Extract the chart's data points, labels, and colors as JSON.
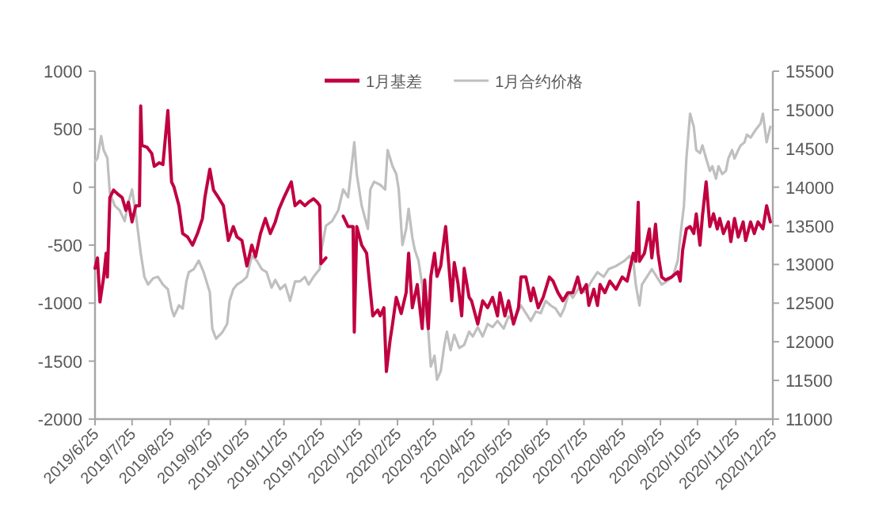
{
  "chart_data": {
    "type": "line",
    "legend": "top",
    "grid": false,
    "marker": "none",
    "line_style": "solid",
    "xlim": [
      "2019-06-25",
      "2020-12-25"
    ],
    "xticks": [
      {
        "value": "2019-06-25",
        "label": "2019/6/25"
      },
      {
        "value": "2019-07-25",
        "label": "2019/7/25"
      },
      {
        "value": "2019-08-25",
        "label": "2019/8/25"
      },
      {
        "value": "2019-09-25",
        "label": "2019/9/25"
      },
      {
        "value": "2019-10-25",
        "label": "2019/10/25"
      },
      {
        "value": "2019-11-25",
        "label": "2019/11/25"
      },
      {
        "value": "2019-12-25",
        "label": "2019/12/25"
      },
      {
        "value": "2020-01-25",
        "label": "2020/1/25"
      },
      {
        "value": "2020-02-25",
        "label": "2020/2/25"
      },
      {
        "value": "2020-03-25",
        "label": "2020/3/25"
      },
      {
        "value": "2020-04-25",
        "label": "2020/4/25"
      },
      {
        "value": "2020-05-25",
        "label": "2020/5/25"
      },
      {
        "value": "2020-06-25",
        "label": "2020/6/25"
      },
      {
        "value": "2020-07-25",
        "label": "2020/7/25"
      },
      {
        "value": "2020-08-25",
        "label": "2020/8/25"
      },
      {
        "value": "2020-09-25",
        "label": "2020/9/25"
      },
      {
        "value": "2020-10-25",
        "label": "2020/10/25"
      },
      {
        "value": "2020-11-25",
        "label": "2020/11/25"
      },
      {
        "value": "2020-12-25",
        "label": "2020/12/25"
      }
    ],
    "ylim": [
      -2000,
      1000
    ],
    "yticks": [
      -2000,
      -1500,
      -1000,
      -500,
      0,
      500,
      1000
    ],
    "y2lim": [
      11000,
      15500
    ],
    "y2ticks": [
      11000,
      11500,
      12000,
      12500,
      13000,
      13500,
      14000,
      14500,
      15000,
      15500
    ],
    "series": [
      {
        "name": "1月基差",
        "color": "#c00040",
        "axis": "y",
        "x": [
          "2019-06-25",
          "2019-06-27",
          "2019-06-29",
          "2019-07-02",
          "2019-07-04",
          "2019-07-05",
          "2019-07-07",
          "2019-07-10",
          "2019-07-14",
          "2019-07-17",
          "2019-07-20",
          "2019-07-22",
          "2019-07-25",
          "2019-07-28",
          "2019-07-31",
          "2019-08-01",
          "2019-08-02",
          "2019-08-06",
          "2019-08-10",
          "2019-08-12",
          "2019-08-16",
          "2019-08-19",
          "2019-08-23",
          "2019-08-26",
          "2019-08-28",
          "2019-09-01",
          "2019-09-04",
          "2019-09-08",
          "2019-09-12",
          "2019-09-16",
          "2019-09-20",
          "2019-09-22",
          "2019-09-26",
          "2019-09-29",
          "2019-10-03",
          "2019-10-07",
          "2019-10-11",
          "2019-10-15",
          "2019-10-18",
          "2019-10-22",
          "2019-10-26",
          "2019-10-30",
          "2019-11-02",
          "2019-11-06",
          "2019-11-10",
          "2019-11-14",
          "2019-11-18",
          "2019-11-21",
          "2019-11-25",
          "2019-11-29",
          "2019-12-01",
          "2019-12-04",
          "2019-12-08",
          "2019-12-12",
          "2019-12-15",
          "2019-12-19",
          "2019-12-22",
          "2019-12-24",
          "2019-12-25",
          "2019-12-29",
          "2020-01-05",
          "2020-01-12",
          "2020-01-16",
          "2020-01-20",
          "2020-01-21",
          "2020-01-23",
          "2020-01-27",
          "2020-01-31",
          "2020-02-05",
          "2020-02-09",
          "2020-02-11",
          "2020-02-14",
          "2020-02-16",
          "2020-02-19",
          "2020-02-21",
          "2020-02-24",
          "2020-02-28",
          "2020-03-03",
          "2020-03-05",
          "2020-03-08",
          "2020-03-12",
          "2020-03-16",
          "2020-03-18",
          "2020-03-21",
          "2020-03-23",
          "2020-03-26",
          "2020-03-28",
          "2020-03-31",
          "2020-04-04",
          "2020-04-06",
          "2020-04-09",
          "2020-04-11",
          "2020-04-14",
          "2020-04-17",
          "2020-04-19",
          "2020-04-23",
          "2020-04-25",
          "2020-04-30",
          "2020-05-04",
          "2020-05-08",
          "2020-05-12",
          "2020-05-16",
          "2020-05-18",
          "2020-05-22",
          "2020-05-25",
          "2020-05-29",
          "2020-06-02",
          "2020-06-04",
          "2020-06-08",
          "2020-06-12",
          "2020-06-14",
          "2020-06-18",
          "2020-06-22",
          "2020-06-27",
          "2020-06-30",
          "2020-07-04",
          "2020-07-08",
          "2020-07-12",
          "2020-07-16",
          "2020-07-20",
          "2020-07-23",
          "2020-07-27",
          "2020-07-29",
          "2020-08-02",
          "2020-08-05",
          "2020-08-07",
          "2020-08-11",
          "2020-08-15",
          "2020-08-20",
          "2020-08-25",
          "2020-08-29",
          "2020-09-03",
          "2020-09-05",
          "2020-09-07",
          "2020-09-08",
          "2020-09-12",
          "2020-09-16",
          "2020-09-18",
          "2020-09-21",
          "2020-09-23",
          "2020-09-26",
          "2020-09-29",
          "2020-10-04",
          "2020-10-09",
          "2020-10-11",
          "2020-10-13",
          "2020-10-16",
          "2020-10-19",
          "2020-10-22",
          "2020-10-24",
          "2020-10-27",
          "2020-10-29",
          "2020-11-01",
          "2020-11-04",
          "2020-11-07",
          "2020-11-10",
          "2020-11-12",
          "2020-11-15",
          "2020-11-19",
          "2020-11-21",
          "2020-11-24",
          "2020-11-27",
          "2020-12-01",
          "2020-12-03",
          "2020-12-07",
          "2020-12-10",
          "2020-12-13",
          "2020-12-17",
          "2020-12-20",
          "2020-12-23"
        ],
        "values": [
          -700,
          -610,
          -990,
          -775,
          -570,
          -775,
          -90,
          -25,
          -65,
          -90,
          -200,
          -130,
          -300,
          -160,
          -160,
          700,
          360,
          345,
          290,
          180,
          210,
          195,
          660,
          45,
          0,
          -160,
          -400,
          -430,
          -500,
          -400,
          -270,
          -90,
          155,
          -25,
          -90,
          -160,
          -460,
          -340,
          -430,
          -460,
          -680,
          -500,
          -600,
          -400,
          -270,
          -400,
          -300,
          -190,
          -90,
          0,
          45,
          -160,
          -120,
          -160,
          -130,
          -100,
          -130,
          -160,
          -660,
          -610,
          null,
          -250,
          -340,
          -340,
          -1250,
          -340,
          -500,
          -570,
          -1110,
          -1060,
          -1110,
          -1040,
          -1590,
          -1320,
          -1180,
          -950,
          -1090,
          -910,
          -570,
          -1040,
          -840,
          -1220,
          -800,
          -1220,
          -770,
          -570,
          -770,
          -680,
          -340,
          -600,
          -980,
          -650,
          -830,
          -1110,
          -700,
          -950,
          -980,
          -1180,
          -980,
          -1040,
          -950,
          -1110,
          -910,
          -1110,
          -980,
          -1180,
          -1040,
          -775,
          -775,
          -980,
          -870,
          -1040,
          -950,
          -775,
          -810,
          -910,
          -980,
          -910,
          -910,
          -775,
          -910,
          -840,
          -1020,
          -880,
          -1020,
          -840,
          -910,
          -810,
          -880,
          -775,
          -810,
          -570,
          -640,
          -130,
          -640,
          -570,
          -360,
          -610,
          -320,
          -570,
          -775,
          -800,
          -775,
          -730,
          -810,
          -540,
          -360,
          -340,
          -400,
          -230,
          -500,
          -250,
          45,
          -340,
          -230,
          -360,
          -270,
          -400,
          -300,
          -470,
          -270,
          -430,
          -300,
          -460,
          -300,
          -400,
          -300,
          -360,
          -160,
          -300
        ]
      },
      {
        "name": "1月合约价格",
        "color": "#bfbfbf",
        "axis": "y2",
        "x": [
          "2019-06-25",
          "2019-06-27",
          "2019-06-30",
          "2019-07-02",
          "2019-07-05",
          "2019-07-07",
          "2019-07-11",
          "2019-07-15",
          "2019-07-19",
          "2019-07-22",
          "2019-07-25",
          "2019-07-28",
          "2019-08-01",
          "2019-08-04",
          "2019-08-07",
          "2019-08-11",
          "2019-08-15",
          "2019-08-19",
          "2019-08-23",
          "2019-08-26",
          "2019-08-28",
          "2019-09-01",
          "2019-09-04",
          "2019-09-07",
          "2019-09-09",
          "2019-09-13",
          "2019-09-17",
          "2019-09-21",
          "2019-09-26",
          "2019-09-28",
          "2019-10-01",
          "2019-10-06",
          "2019-10-10",
          "2019-10-12",
          "2019-10-15",
          "2019-10-18",
          "2019-10-22",
          "2019-10-26",
          "2019-10-30",
          "2019-11-03",
          "2019-11-07",
          "2019-11-11",
          "2019-11-15",
          "2019-11-18",
          "2019-11-22",
          "2019-11-26",
          "2019-11-30",
          "2019-12-04",
          "2019-12-08",
          "2019-12-12",
          "2019-12-15",
          "2019-12-19",
          "2019-12-24",
          "2019-12-25",
          "2019-12-29",
          "2020-01-03",
          "2020-01-08",
          "2020-01-12",
          "2020-01-16",
          "2020-01-21",
          "2020-01-23",
          "2020-01-27",
          "2020-02-01",
          "2020-02-03",
          "2020-02-06",
          "2020-02-11",
          "2020-02-15",
          "2020-02-17",
          "2020-02-21",
          "2020-02-24",
          "2020-02-26",
          "2020-02-29",
          "2020-03-03",
          "2020-03-05",
          "2020-03-08",
          "2020-03-10",
          "2020-03-13",
          "2020-03-16",
          "2020-03-18",
          "2020-03-21",
          "2020-03-23",
          "2020-03-26",
          "2020-03-28",
          "2020-03-31",
          "2020-04-03",
          "2020-04-05",
          "2020-04-08",
          "2020-04-11",
          "2020-04-15",
          "2020-04-19",
          "2020-04-23",
          "2020-04-26",
          "2020-04-30",
          "2020-05-04",
          "2020-05-08",
          "2020-05-12",
          "2020-05-16",
          "2020-05-21",
          "2020-05-25",
          "2020-05-29",
          "2020-06-01",
          "2020-06-04",
          "2020-06-08",
          "2020-06-12",
          "2020-06-16",
          "2020-06-20",
          "2020-06-24",
          "2020-06-28",
          "2020-07-02",
          "2020-07-06",
          "2020-07-09",
          "2020-07-13",
          "2020-07-16",
          "2020-07-21",
          "2020-07-26",
          "2020-07-31",
          "2020-08-05",
          "2020-08-10",
          "2020-08-14",
          "2020-08-20",
          "2020-08-27",
          "2020-08-31",
          "2020-09-03",
          "2020-09-05",
          "2020-09-08",
          "2020-09-10",
          "2020-09-14",
          "2020-09-18",
          "2020-09-22",
          "2020-09-26",
          "2020-09-30",
          "2020-10-05",
          "2020-10-09",
          "2020-10-11",
          "2020-10-14",
          "2020-10-16",
          "2020-10-19",
          "2020-10-22",
          "2020-10-24",
          "2020-10-27",
          "2020-10-29",
          "2020-11-01",
          "2020-11-04",
          "2020-11-06",
          "2020-11-09",
          "2020-11-11",
          "2020-11-14",
          "2020-11-17",
          "2020-11-19",
          "2020-11-22",
          "2020-11-24",
          "2020-11-27",
          "2020-11-29",
          "2020-12-02",
          "2020-12-04",
          "2020-12-07",
          "2020-12-11",
          "2020-12-15",
          "2020-12-17",
          "2020-12-20",
          "2020-12-23"
        ],
        "values": [
          14330,
          14375,
          14660,
          14480,
          14375,
          13925,
          13760,
          13700,
          13560,
          13800,
          13970,
          13660,
          13150,
          12840,
          12740,
          12820,
          12840,
          12740,
          12680,
          12430,
          12330,
          12470,
          12430,
          12780,
          12900,
          12940,
          13050,
          12900,
          12640,
          12170,
          12040,
          12120,
          12230,
          12530,
          12680,
          12740,
          12780,
          12840,
          13110,
          13050,
          12940,
          12900,
          12700,
          12800,
          12680,
          12740,
          12530,
          12780,
          12780,
          12840,
          12740,
          12840,
          12940,
          13150,
          13500,
          13560,
          13700,
          13970,
          13870,
          14580,
          14170,
          13760,
          13460,
          13970,
          14070,
          14030,
          13970,
          14480,
          14270,
          14170,
          13970,
          13250,
          13460,
          13720,
          13350,
          13190,
          13050,
          12740,
          12430,
          12130,
          11680,
          11820,
          11510,
          11620,
          11960,
          12130,
          11890,
          12090,
          11920,
          11960,
          12130,
          12070,
          12190,
          12070,
          12230,
          12190,
          12270,
          12170,
          12330,
          12270,
          12370,
          12470,
          12370,
          12270,
          12390,
          12370,
          12530,
          12470,
          12430,
          12330,
          12430,
          12640,
          12570,
          12700,
          12640,
          12780,
          12900,
          12840,
          12940,
          12980,
          13050,
          13110,
          13050,
          12740,
          12470,
          12740,
          12840,
          12940,
          12840,
          12740,
          12780,
          12840,
          13050,
          13350,
          13760,
          14370,
          14950,
          14780,
          14480,
          14440,
          14540,
          14370,
          14210,
          14270,
          14110,
          14270,
          14170,
          14210,
          14370,
          14480,
          14370,
          14480,
          14540,
          14580,
          14680,
          14640,
          14740,
          14820,
          14950,
          14580,
          14780
        ]
      }
    ]
  }
}
